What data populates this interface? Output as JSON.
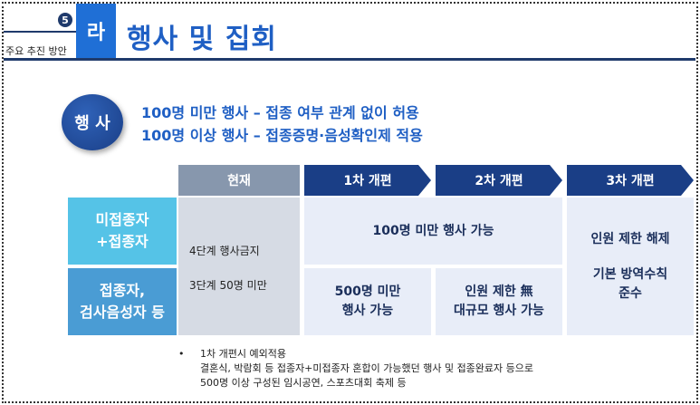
{
  "header": {
    "section_number": "5",
    "section_label": "주요 추진 방안",
    "chip_letter": "라",
    "title": "행사 및 집회"
  },
  "event": {
    "label": "행 사",
    "lines": [
      "100명 미만 행사 – 접종 여부 관계 없이 허용",
      "100명 이상 행사 – 접종증명·음성확인제 적용"
    ]
  },
  "table": {
    "columns": [
      "현재",
      "1차 개편",
      "2차 개편",
      "3차 개편"
    ],
    "rows": [
      [
        "미접종자",
        "+접종자"
      ],
      [
        "접종자,",
        "검사음성자 등"
      ]
    ],
    "current": [
      "4단계 행사금지",
      "3단계 50명 미만"
    ],
    "stage12_row1": "100명 미만 행사 가능",
    "stage1_row2": [
      "500명 미만",
      "행사 가능"
    ],
    "stage2_row2": [
      "인원 제한 無",
      "대규모 행사 가능"
    ],
    "stage3": [
      "인원 제한 해제",
      "기본 방역수칙",
      "준수"
    ]
  },
  "notes": {
    "bullet": "•",
    "lines": [
      "1차 개편시 예외적용",
      "결혼식, 박람회 등 접종자+미접종자 혼합이 가능했던 행사 및 접종완료자 등으로",
      "500명 이상 구성된 임시공연, 스포츠대회 축제 등"
    ]
  },
  "colors": {
    "navy": "#1a3e86",
    "blue_title": "#1f5fc4",
    "row1": "#55c3e7",
    "row2": "#4a9cd4",
    "current_header": "#8797ad"
  }
}
